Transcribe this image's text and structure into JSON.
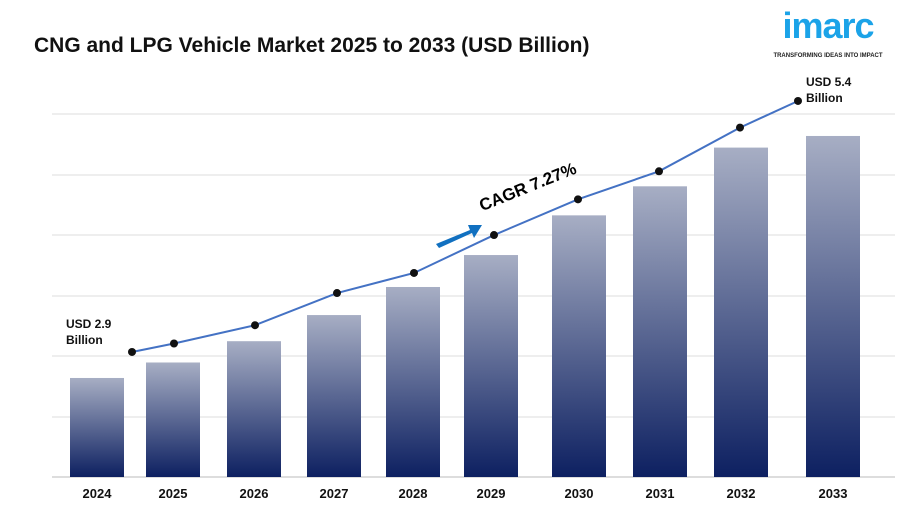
{
  "chart_data": {
    "type": "bar",
    "title": "CNG and LPG Vehicle Market 2025 to 2033 (USD Billion)",
    "categories": [
      "2024",
      "2025",
      "2026",
      "2027",
      "2028",
      "2029",
      "2030",
      "2031",
      "2032",
      "2033"
    ],
    "values": [
      2.9,
      3.06,
      3.28,
      3.55,
      3.84,
      4.17,
      4.58,
      4.88,
      5.28,
      5.4
    ],
    "trend_line": true,
    "grid": true,
    "annotations": {
      "start": "USD 2.9",
      "start_unit": "Billion",
      "end": "USD 5.4",
      "end_unit": "Billion",
      "cagr": "CAGR 7.27%"
    },
    "colors": {
      "bar_top": "#a7aec4",
      "bar_bottom": "#0d2061",
      "line": "#4472c4",
      "arrow": "#1170c0"
    }
  },
  "logo": {
    "word": "imarc",
    "tagline": "TRANSFORMING IDEAS INTO IMPACT"
  }
}
